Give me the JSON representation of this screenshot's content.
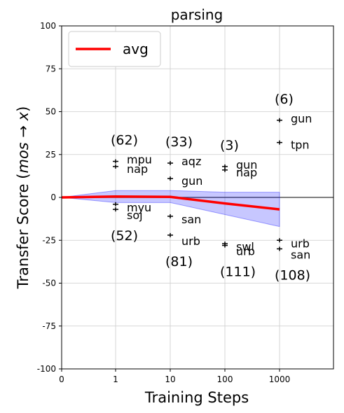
{
  "chart_data": {
    "type": "scatter",
    "title": "parsing",
    "xlabel": "Training Steps",
    "ylabel_parts": [
      "Transfer Score (",
      "mos",
      " → ",
      "x",
      ")"
    ],
    "xticks": [
      "0",
      "1",
      "10",
      "100",
      "1000"
    ],
    "ylim": [
      -100,
      100
    ],
    "yticks": [
      -100,
      -75,
      -50,
      -25,
      0,
      25,
      50,
      75,
      100
    ],
    "grid": true,
    "legend": {
      "label": "avg",
      "position": "top-left",
      "color": "#ff0000"
    },
    "avg": {
      "color": "#ff0000",
      "band_color": "#0000ff",
      "x": [
        "0",
        "1",
        "10",
        "100",
        "1000"
      ],
      "mean": [
        0,
        0.5,
        0.3,
        -3.5,
        -7
      ],
      "upper": [
        0,
        4,
        4,
        3,
        3
      ],
      "lower": [
        0,
        -3,
        -3,
        -10,
        -17
      ]
    },
    "groups": [
      {
        "step": "1",
        "count_label": "(62)",
        "count_position": "above",
        "points": [
          {
            "value": 21,
            "label": "mpu"
          },
          {
            "value": 18,
            "label": "nap"
          }
        ]
      },
      {
        "step": "1",
        "count_label": "(52)",
        "count_position": "below",
        "points": [
          {
            "value": -4,
            "label": "myu"
          },
          {
            "value": -7,
            "label": "soj"
          }
        ]
      },
      {
        "step": "10",
        "count_label": "(33)",
        "count_position": "above",
        "points": [
          {
            "value": 20,
            "label": "aqz"
          },
          {
            "value": 11,
            "label": "gun"
          }
        ]
      },
      {
        "step": "10",
        "count_label": "(81)",
        "count_position": "below",
        "points": [
          {
            "value": -11,
            "label": "san"
          },
          {
            "value": -22,
            "label": "urb"
          }
        ]
      },
      {
        "step": "100",
        "count_label": "(3)",
        "count_position": "above",
        "points": [
          {
            "value": 18,
            "label": "gun"
          },
          {
            "value": 16,
            "label": "nap"
          }
        ]
      },
      {
        "step": "100",
        "count_label": "(111)",
        "count_position": "below",
        "points": [
          {
            "value": -27,
            "label": "swl"
          },
          {
            "value": -28,
            "label": "urb"
          }
        ]
      },
      {
        "step": "1000",
        "count_label": "(6)",
        "count_position": "above",
        "points": [
          {
            "value": 45,
            "label": "gun"
          },
          {
            "value": 32,
            "label": "tpn"
          }
        ]
      },
      {
        "step": "1000",
        "count_label": "(108)",
        "count_position": "below",
        "points": [
          {
            "value": -25,
            "label": "urb"
          },
          {
            "value": -30,
            "label": "san"
          }
        ]
      }
    ]
  }
}
